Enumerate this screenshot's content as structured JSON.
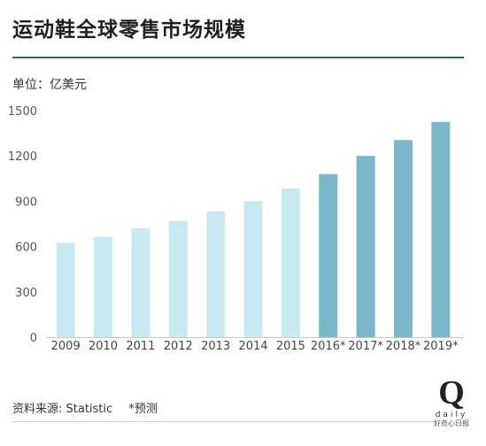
{
  "title": "运动鞋全球零售市场规模",
  "unit_label": "单位：亿美元",
  "footer": {
    "source": "资料来源: Statistic",
    "note": "*预测"
  },
  "logo": {
    "letter": "Q",
    "word": "daily",
    "cn": "好奇心日报"
  },
  "colors": {
    "actual_bar": "#c8e8f2",
    "forecast_bar": "#7ab7c8",
    "axis": "#c8c8c8",
    "accent_rule": "#2f5f8f"
  },
  "chart_data": {
    "type": "bar",
    "title": "运动鞋全球零售市场规模",
    "ylabel": "单位：亿美元",
    "xlabel": "",
    "categories": [
      "2009",
      "2010",
      "2011",
      "2012",
      "2013",
      "2014",
      "2015",
      "2016*",
      "2017*",
      "2018*",
      "2019*"
    ],
    "values": [
      625,
      665,
      720,
      770,
      833,
      900,
      985,
      1080,
      1200,
      1305,
      1425
    ],
    "forecast": [
      false,
      false,
      false,
      false,
      false,
      false,
      false,
      true,
      true,
      true,
      true
    ],
    "yticks": [
      "0",
      "300",
      "600",
      "900",
      "1200",
      "1500"
    ],
    "ylim": [
      0,
      1500
    ],
    "grid": false
  }
}
